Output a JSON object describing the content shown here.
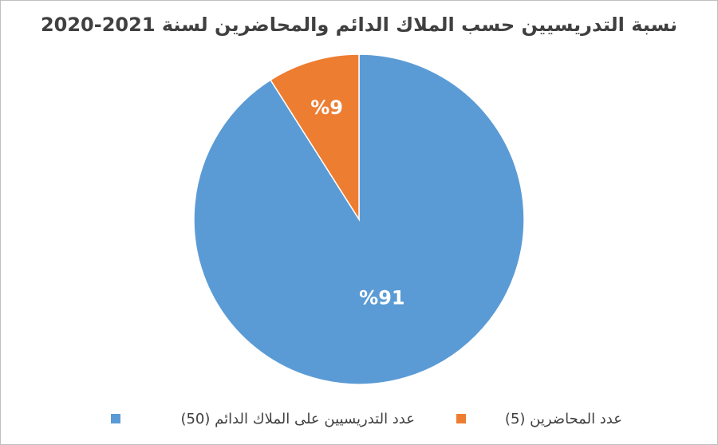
{
  "chart_data": {
    "type": "pie",
    "title": "نسبة التدريسيين حسب الملاك الدائم والمحاضرين لسنة 2021-2020",
    "categories": [
      "عدد التدريسيين على الملاك الدائم (50)",
      "عدد المحاضرين (5)"
    ],
    "values": [
      91,
      9
    ],
    "value_labels": [
      "%91",
      "%9"
    ],
    "colors": [
      "#5b9bd5",
      "#ed7d31"
    ],
    "legend": "bottom"
  }
}
